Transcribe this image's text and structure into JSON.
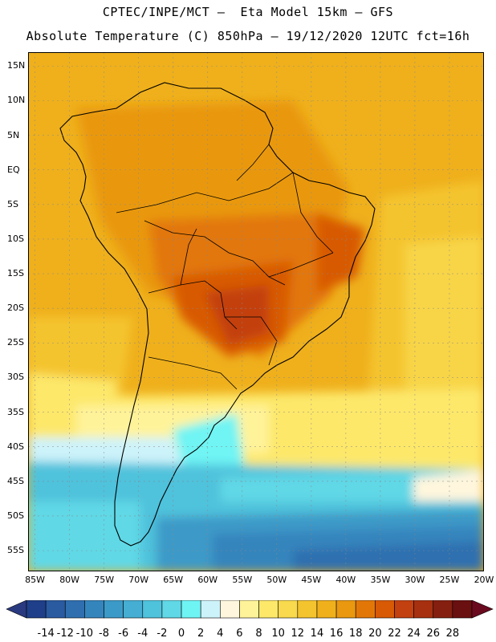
{
  "header": {
    "line1": "CPTEC/INPE/MCT –  Eta Model 15km – GFS",
    "line2": "Absolute Temperature (C) 850hPa – 19/12/2020 12UTC fct=16h"
  },
  "map": {
    "lat_labels": [
      "15N",
      "10N",
      "5N",
      "EQ",
      "5S",
      "10S",
      "15S",
      "20S",
      "25S",
      "30S",
      "35S",
      "40S",
      "45S",
      "50S",
      "55S"
    ],
    "lon_labels": [
      "85W",
      "80W",
      "75W",
      "70W",
      "65W",
      "60W",
      "55W",
      "50W",
      "45W",
      "40W",
      "35W",
      "30W",
      "25W",
      "20W"
    ],
    "lat_range": [
      17,
      -58
    ],
    "lon_range": [
      -86,
      -20
    ],
    "gridlines": true
  },
  "colorbar": {
    "levels": [
      "-14",
      "-12",
      "-10",
      "-8",
      "-6",
      "-4",
      "-2",
      "0",
      "2",
      "4",
      "6",
      "8",
      "10",
      "12",
      "14",
      "16",
      "18",
      "20",
      "22",
      "24",
      "26",
      "28"
    ],
    "colors": [
      "#1f3f8a",
      "#2a5aa0",
      "#2f6fb0",
      "#3585bd",
      "#3c9ac8",
      "#45aed2",
      "#4fc2dc",
      "#60d8e6",
      "#6ff4f4",
      "#cdf3fa",
      "#fff6dd",
      "#fff39a",
      "#fde86a",
      "#f9d94d",
      "#f4c42e",
      "#efb01c",
      "#e9980f",
      "#e27708",
      "#d85a05",
      "#c34010",
      "#a6300f",
      "#852010",
      "#6a1010"
    ],
    "end_colors": [
      "#2a3a80",
      "#6a0a1e"
    ]
  }
}
